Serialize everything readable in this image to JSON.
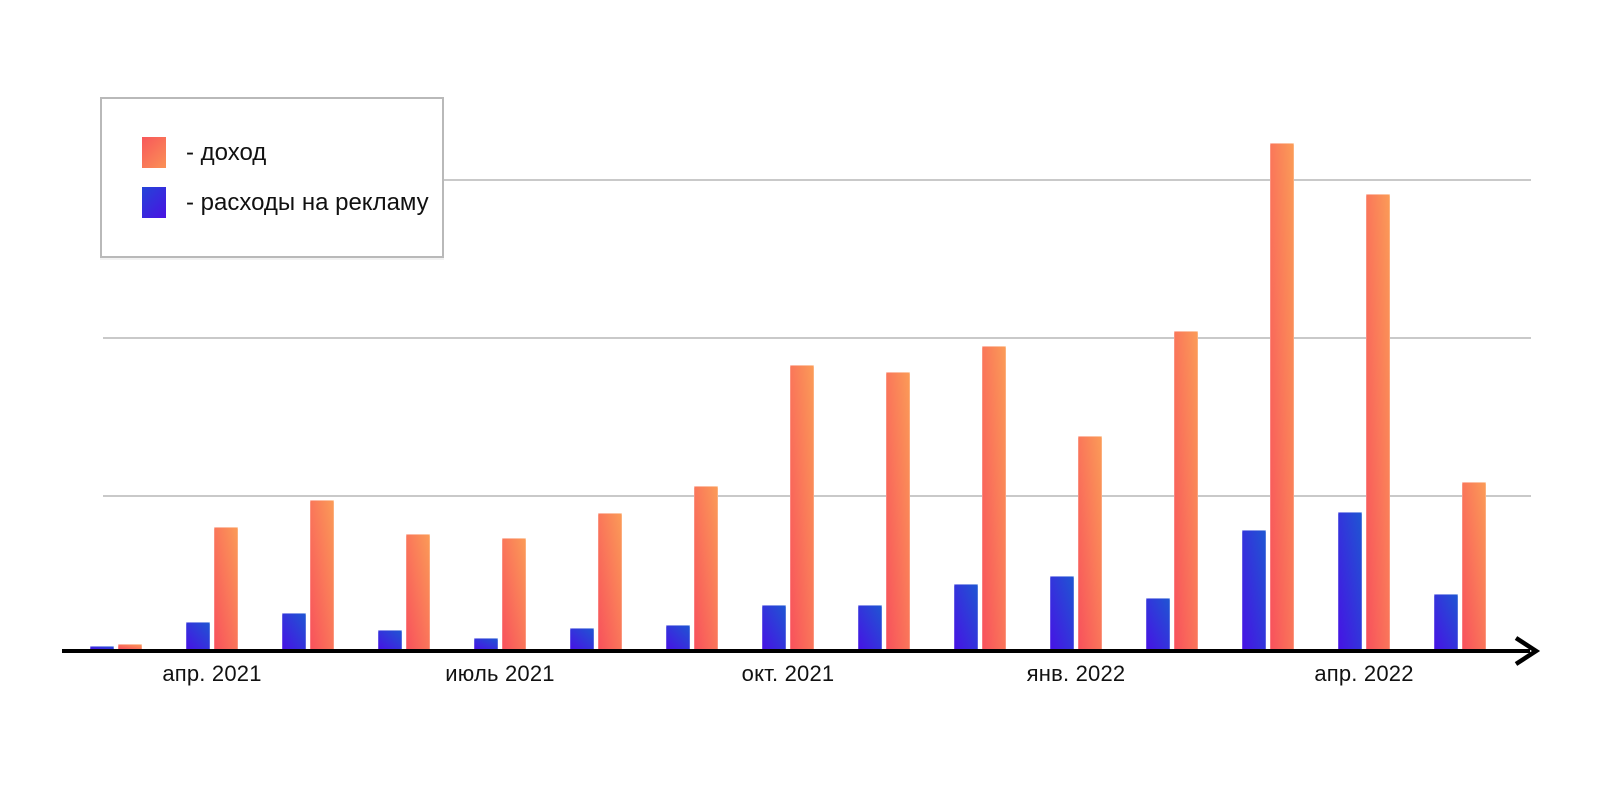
{
  "chart": {
    "legend": {
      "items": [
        {
          "id": "income",
          "label": "- доход",
          "swatch_from": "#f8575a",
          "swatch_to": "#fa9156"
        },
        {
          "id": "ad-expenses",
          "label": "- расходы на рекламу",
          "swatch_from": "#2444d8",
          "swatch_to": "#4a12e2"
        }
      ]
    },
    "colors": {
      "income_gradient_bottom": "#f8505c",
      "income_gradient_top": "#fb9c57",
      "expenses_gradient_bottom": "#4712e4",
      "expenses_gradient_top": "#1e57d2",
      "gridline": "#c9c9c9",
      "axis": "#000000",
      "text": "#111111"
    }
  },
  "chart_data": {
    "type": "bar",
    "title": "",
    "xlabel": "",
    "ylabel": "",
    "n_groups": 15,
    "legend_position": "top-left",
    "y_axis_labels_visible": false,
    "x_axis_arrow": true,
    "values_unit": "relative grid units (y axis has unlabeled gridlines at 1, 2, 3)",
    "ylim": [
      0,
      3.5
    ],
    "y_gridlines_at": [
      1,
      2,
      3
    ],
    "x_tick_labels": [
      {
        "group_index": 1,
        "label": "апр. 2021"
      },
      {
        "group_index": 4,
        "label": "июль 2021"
      },
      {
        "group_index": 7,
        "label": "окт. 2021"
      },
      {
        "group_index": 10,
        "label": "янв. 2022"
      },
      {
        "group_index": 13,
        "label": "апр. 2022"
      }
    ],
    "series": [
      {
        "name": "доход",
        "color_from": "#f8505c",
        "color_to": "#fb9c57",
        "values": [
          0.03,
          0.77,
          0.94,
          0.73,
          0.7,
          0.86,
          1.03,
          1.8,
          1.75,
          1.92,
          1.35,
          2.01,
          3.2,
          2.88,
          1.06
        ]
      },
      {
        "name": "расходы на рекламу",
        "color_from": "#4712e4",
        "color_to": "#1e57d2",
        "values": [
          0.02,
          0.17,
          0.23,
          0.12,
          0.07,
          0.13,
          0.15,
          0.28,
          0.28,
          0.41,
          0.46,
          0.32,
          0.75,
          0.87,
          0.35
        ]
      }
    ]
  }
}
